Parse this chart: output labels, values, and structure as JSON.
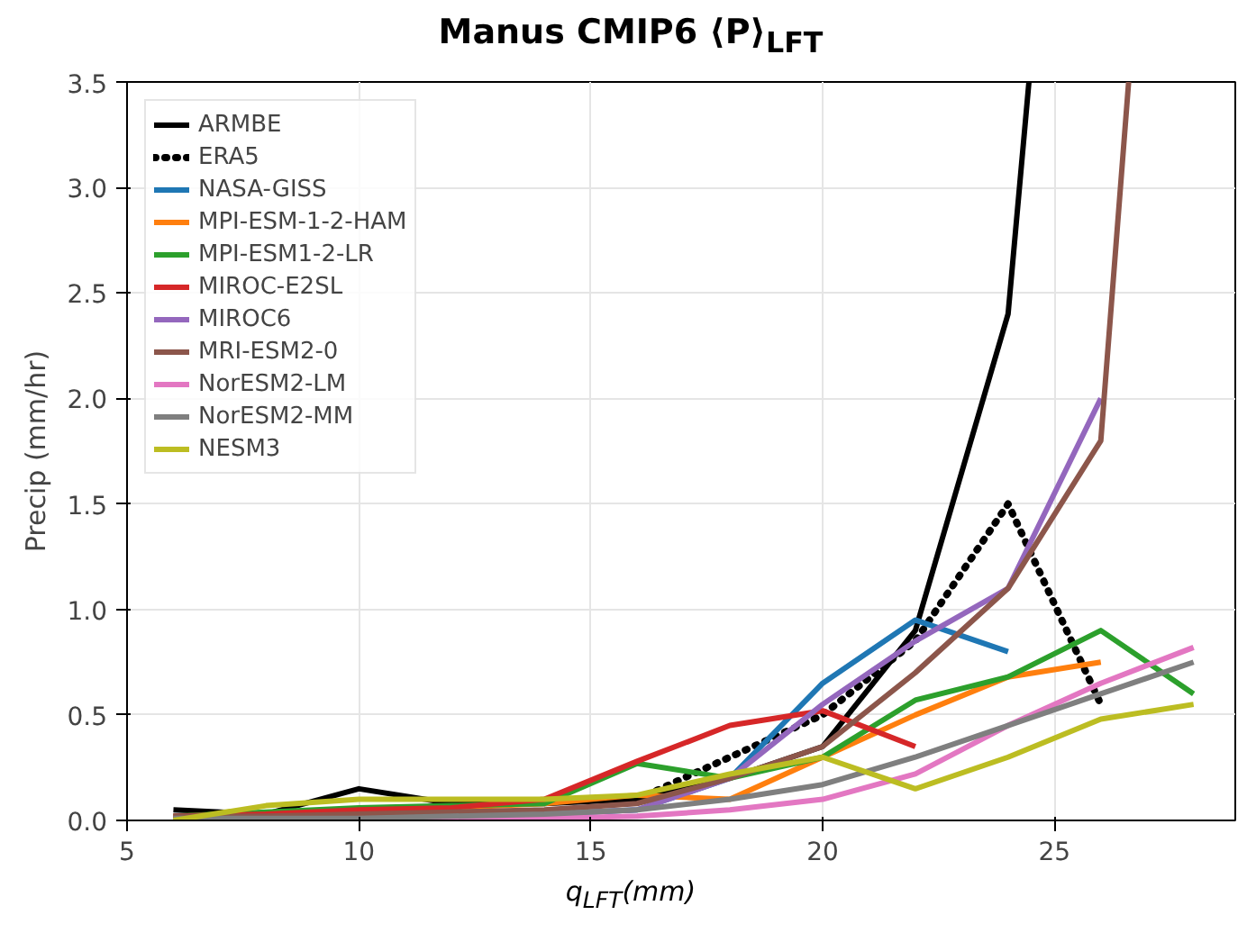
{
  "chart_data": {
    "type": "line",
    "title": "Manus CMIP6 ⟨P⟩$_{LFT}$",
    "xlabel": "q$_{LFT}$(mm)",
    "ylabel": "Precip (mm/hr)",
    "xlim": [
      5,
      28.9
    ],
    "ylim": [
      0,
      3.5
    ],
    "xticks": [
      5,
      10,
      15,
      20,
      25
    ],
    "yticks": [
      {
        "value": 0,
        "label": "0.0"
      },
      0.5,
      {
        "value": 1,
        "label": "1.0"
      },
      1.5,
      {
        "value": 2,
        "label": "2.0"
      },
      2.5,
      {
        "value": 3,
        "label": "3.0"
      },
      3.5
    ],
    "grid": true,
    "legend": "top left",
    "series": [
      {
        "name": "ARMBE",
        "color": "#000000",
        "x": [
          6,
          8,
          10,
          12,
          14,
          16,
          18,
          20,
          22,
          24,
          24.45
        ],
        "values": [
          0.05,
          0.03,
          0.15,
          0.08,
          0.08,
          0.1,
          0.2,
          0.35,
          0.9,
          2.4,
          3.5
        ]
      },
      {
        "name": "ERA5",
        "color": "#000000",
        "line_style": "dotted",
        "x": [
          16,
          18,
          20,
          22,
          24,
          26
        ],
        "values": [
          0.1,
          0.3,
          0.5,
          0.85,
          1.5,
          0.55
        ]
      },
      {
        "name": "NASA-GISS",
        "color": "#1f77b4",
        "x": [
          14,
          16,
          18,
          20,
          22,
          24
        ],
        "values": [
          0.03,
          0.05,
          0.2,
          0.65,
          0.95,
          0.8
        ]
      },
      {
        "name": "MPI-ESM-1-2-HAM",
        "color": "#ff7f0e",
        "x": [
          10,
          12,
          14,
          16,
          18,
          20,
          22,
          24,
          26
        ],
        "values": [
          0.05,
          0.06,
          0.08,
          0.12,
          0.1,
          0.3,
          0.5,
          0.68,
          0.75
        ]
      },
      {
        "name": "MPI-ESM1-2-LR",
        "color": "#2ca02c",
        "x": [
          6,
          8,
          10,
          12,
          14,
          16,
          18,
          20,
          22,
          24,
          26,
          28
        ],
        "values": [
          0.02,
          0.04,
          0.06,
          0.07,
          0.08,
          0.27,
          0.2,
          0.3,
          0.57,
          0.68,
          0.9,
          0.6
        ]
      },
      {
        "name": "MIROC-E2SL",
        "color": "#d62728",
        "x": [
          6,
          8,
          10,
          12,
          14,
          16,
          18,
          20,
          22
        ],
        "values": [
          0.02,
          0.03,
          0.05,
          0.06,
          0.1,
          0.28,
          0.45,
          0.52,
          0.35
        ]
      },
      {
        "name": "MIROC6",
        "color": "#9467bd",
        "x": [
          10,
          12,
          14,
          16,
          18,
          20,
          22,
          24,
          26
        ],
        "values": [
          0.02,
          0.02,
          0.03,
          0.05,
          0.2,
          0.55,
          0.85,
          1.1,
          2.0
        ]
      },
      {
        "name": "MRI-ESM2-0",
        "color": "#8c564b",
        "x": [
          6,
          8,
          10,
          12,
          14,
          16,
          18,
          20,
          22,
          24,
          26,
          26.6
        ],
        "values": [
          0.02,
          0.02,
          0.03,
          0.04,
          0.05,
          0.08,
          0.2,
          0.35,
          0.7,
          1.1,
          1.8,
          3.5
        ]
      },
      {
        "name": "NorESM2-LM",
        "color": "#e377c2",
        "x": [
          10,
          12,
          14,
          16,
          18,
          20,
          22,
          24,
          26,
          28
        ],
        "values": [
          0.0,
          0.01,
          0.01,
          0.02,
          0.05,
          0.1,
          0.22,
          0.45,
          0.65,
          0.82
        ]
      },
      {
        "name": "NorESM2-MM",
        "color": "#7f7f7f",
        "x": [
          6,
          8,
          10,
          12,
          14,
          16,
          18,
          20,
          22,
          24,
          26,
          28
        ],
        "values": [
          0.01,
          0.01,
          0.01,
          0.02,
          0.03,
          0.05,
          0.1,
          0.17,
          0.3,
          0.45,
          0.6,
          0.75
        ]
      },
      {
        "name": "NESM3",
        "color": "#bcbd22",
        "x": [
          6,
          8,
          10,
          12,
          14,
          16,
          18,
          20,
          22,
          24,
          26,
          28
        ],
        "values": [
          0.0,
          0.07,
          0.1,
          0.1,
          0.1,
          0.12,
          0.22,
          0.3,
          0.15,
          0.3,
          0.48,
          0.55
        ]
      }
    ]
  }
}
